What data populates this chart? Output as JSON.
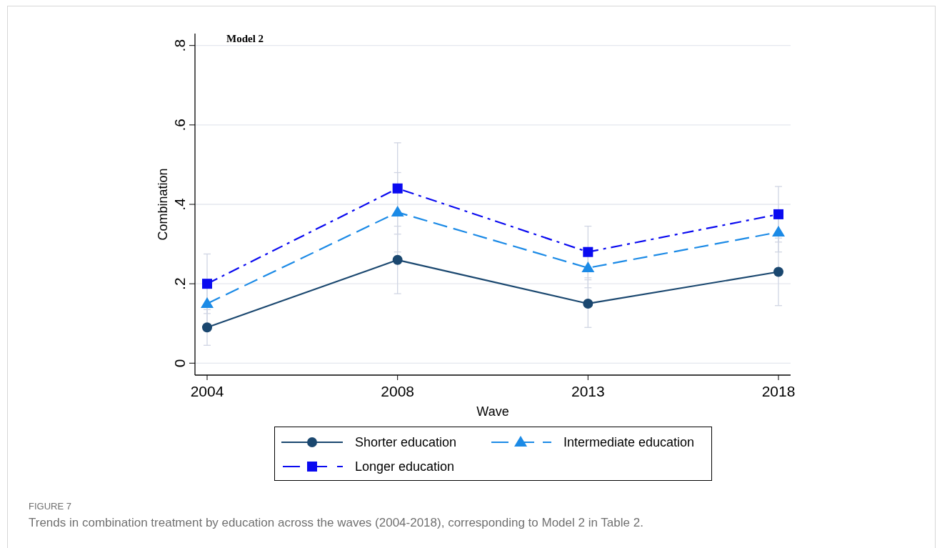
{
  "chart_data": {
    "type": "line",
    "title": "Model 2",
    "xlabel": "Wave",
    "ylabel": "Combination",
    "categories": [
      "2004",
      "2008",
      "2013",
      "2018"
    ],
    "series": [
      {
        "name": "Shorter education",
        "color": "#1a476f",
        "marker": "circle",
        "line_style": "solid",
        "values": [
          0.09,
          0.26,
          0.15,
          0.23
        ],
        "errors": [
          0.045,
          0.085,
          0.06,
          0.085
        ]
      },
      {
        "name": "Intermediate education",
        "color": "#1b8ae6",
        "marker": "triangle",
        "line_style": "dashed",
        "values": [
          0.15,
          0.38,
          0.24,
          0.33
        ],
        "errors": [
          0.055,
          0.1,
          0.05,
          0.05
        ]
      },
      {
        "name": "Longer education",
        "color": "#0a0af0",
        "marker": "square",
        "line_style": "dashdot",
        "values": [
          0.2,
          0.44,
          0.28,
          0.375
        ],
        "errors": [
          0.075,
          0.115,
          0.065,
          0.07
        ]
      }
    ],
    "ylim": [
      -0.03,
      0.83
    ],
    "yticks": [
      0,
      {
        "value": 0.2,
        "label": ".2"
      },
      {
        "value": 0.4,
        "label": ".4"
      },
      {
        "value": 0.6,
        "label": ".6"
      },
      {
        "value": 0.8,
        "label": ".8"
      }
    ],
    "grid": "y",
    "legend": "bottom",
    "annotations": [
      "FIGURE 7",
      "Trends in combination treatment by education across the waves (2004-2018), corresponding to Model 2 in Table 2."
    ]
  }
}
